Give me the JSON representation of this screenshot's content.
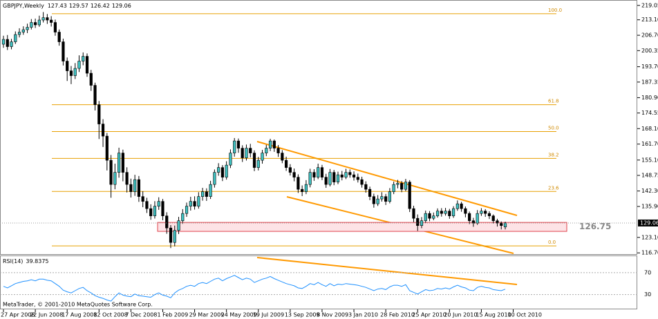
{
  "chart_data": {
    "type": "candlestick",
    "symbol": "GBPJPY,Weekly",
    "candles": [
      [
        203,
        206.5,
        201.5,
        205
      ],
      [
        205,
        206.8,
        200.6,
        202
      ],
      [
        202,
        205.2,
        200.9,
        204
      ],
      [
        204,
        208.3,
        203.1,
        207
      ],
      [
        207,
        209.6,
        205.8,
        208
      ],
      [
        208,
        210.4,
        206.9,
        209
      ],
      [
        209,
        211.5,
        207.6,
        210
      ],
      [
        210,
        213.4,
        209.1,
        212
      ],
      [
        212,
        213.6,
        209.7,
        211
      ],
      [
        211,
        214.8,
        210.2,
        213
      ],
      [
        213,
        216.3,
        212.0,
        214
      ],
      [
        214,
        215.5,
        211.4,
        213
      ],
      [
        213,
        214.6,
        210.3,
        212
      ],
      [
        212,
        213.2,
        206.5,
        208
      ],
      [
        208,
        209.1,
        202.4,
        204
      ],
      [
        204,
        205.3,
        194.2,
        196
      ],
      [
        196,
        197.5,
        187.8,
        192
      ],
      [
        192,
        194.0,
        186.5,
        190
      ],
      [
        190,
        195.2,
        188.6,
        193
      ],
      [
        193,
        198.4,
        191.5,
        196
      ],
      [
        196,
        199.6,
        194.3,
        198
      ],
      [
        198,
        199.2,
        189.5,
        191
      ],
      [
        191,
        192.4,
        183.7,
        186
      ],
      [
        186,
        187.1,
        175.6,
        178
      ],
      [
        178,
        179.5,
        163.8,
        170
      ],
      [
        170,
        172.0,
        160.5,
        165
      ],
      [
        165,
        166.3,
        150.8,
        155
      ],
      [
        155,
        157.2,
        139.5,
        145
      ],
      [
        145,
        153.6,
        143.0,
        150
      ],
      [
        150,
        160.2,
        147.8,
        158
      ],
      [
        158,
        159.4,
        146.3,
        150
      ],
      [
        150,
        152.1,
        141.7,
        145
      ],
      [
        145,
        147.4,
        139.6,
        142
      ],
      [
        142,
        149.0,
        140.3,
        147
      ],
      [
        147,
        148.5,
        137.8,
        140
      ],
      [
        140,
        142.2,
        135.6,
        138
      ],
      [
        138,
        139.5,
        133.2,
        135
      ],
      [
        135,
        136.8,
        130.4,
        132
      ],
      [
        132,
        138.1,
        130.9,
        136
      ],
      [
        136,
        139.7,
        134.5,
        138
      ],
      [
        138,
        139.0,
        130.2,
        132
      ],
      [
        132,
        133.5,
        124.6,
        127
      ],
      [
        127,
        128.2,
        118.7,
        121
      ],
      [
        121,
        128.0,
        119.4,
        126
      ],
      [
        126,
        131.6,
        124.5,
        130
      ],
      [
        130,
        134.8,
        128.7,
        133
      ],
      [
        133,
        137.5,
        131.6,
        136
      ],
      [
        136,
        139.9,
        134.2,
        138
      ],
      [
        138,
        140.1,
        134.6,
        136
      ],
      [
        136,
        141.8,
        135.0,
        140
      ],
      [
        140,
        143.6,
        138.3,
        142
      ],
      [
        142,
        143.4,
        138.2,
        140
      ],
      [
        140,
        146.5,
        139.0,
        145
      ],
      [
        145,
        151.2,
        143.7,
        150
      ],
      [
        150,
        153.8,
        148.6,
        152
      ],
      [
        152,
        153.0,
        146.4,
        148
      ],
      [
        148,
        154.6,
        147.0,
        153
      ],
      [
        153,
        159.5,
        151.8,
        158
      ],
      [
        158,
        164.2,
        156.5,
        163
      ],
      [
        163,
        164.0,
        158.1,
        160
      ],
      [
        160,
        161.2,
        154.3,
        156
      ],
      [
        156,
        161.5,
        154.9,
        160
      ],
      [
        160,
        161.8,
        156.2,
        158
      ],
      [
        158,
        159.1,
        150.5,
        152
      ],
      [
        152,
        156.4,
        150.8,
        155
      ],
      [
        155,
        159.3,
        153.6,
        158
      ],
      [
        158,
        161.4,
        156.7,
        160
      ],
      [
        160,
        163.9,
        158.8,
        163
      ],
      [
        163,
        163.6,
        158.5,
        160
      ],
      [
        160,
        161.3,
        156.4,
        158
      ],
      [
        158,
        159.2,
        153.8,
        155
      ],
      [
        155,
        156.5,
        150.6,
        152
      ],
      [
        152,
        153.4,
        148.7,
        150
      ],
      [
        150,
        151.6,
        146.3,
        148
      ],
      [
        148,
        149.2,
        141.5,
        143
      ],
      [
        143,
        144.6,
        140.2,
        142
      ],
      [
        142,
        146.8,
        141.0,
        145
      ],
      [
        145,
        151.5,
        143.8,
        150
      ],
      [
        150,
        151.3,
        146.5,
        148
      ],
      [
        148,
        153.6,
        147.2,
        152
      ],
      [
        152,
        153.1,
        146.8,
        148
      ],
      [
        148,
        149.4,
        143.6,
        145
      ],
      [
        145,
        151.4,
        144.2,
        150
      ],
      [
        150,
        151.0,
        144.7,
        146
      ],
      [
        146,
        150.3,
        145.1,
        149
      ],
      [
        149,
        150.6,
        146.7,
        148
      ],
      [
        148,
        151.5,
        147.2,
        150
      ],
      [
        150,
        151.2,
        147.8,
        149
      ],
      [
        149,
        150.4,
        146.6,
        148
      ],
      [
        148,
        149.5,
        145.8,
        147
      ],
      [
        147,
        148.2,
        143.7,
        145
      ],
      [
        145,
        146.3,
        141.6,
        143
      ],
      [
        143,
        144.1,
        138.5,
        140
      ],
      [
        140,
        141.2,
        135.4,
        137
      ],
      [
        137,
        140.6,
        136.1,
        139
      ],
      [
        139,
        141.8,
        137.9,
        140
      ],
      [
        140,
        141.1,
        136.5,
        138
      ],
      [
        138,
        143.5,
        137.2,
        142
      ],
      [
        142,
        146.2,
        141.0,
        145
      ],
      [
        145,
        146.9,
        143.4,
        145.5
      ],
      [
        145.5,
        146.4,
        141.8,
        143
      ],
      [
        143,
        147.3,
        142.2,
        146
      ],
      [
        146,
        146.8,
        133.6,
        135
      ],
      [
        135,
        136.2,
        129.4,
        131
      ],
      [
        131,
        132.6,
        125.8,
        128
      ],
      [
        128,
        131.5,
        126.9,
        130
      ],
      [
        130,
        134.2,
        129.1,
        133
      ],
      [
        133,
        134.0,
        129.8,
        131
      ],
      [
        131,
        133.4,
        130.2,
        132
      ],
      [
        132,
        135.1,
        131.3,
        134
      ],
      [
        134,
        135.2,
        131.7,
        133
      ],
      [
        133,
        135.3,
        132.1,
        134
      ],
      [
        134,
        134.9,
        130.8,
        132
      ],
      [
        132,
        136.0,
        131.2,
        135
      ],
      [
        135,
        138.4,
        134.1,
        137
      ],
      [
        137,
        137.8,
        133.7,
        135
      ],
      [
        135,
        135.9,
        131.4,
        133
      ],
      [
        133,
        133.8,
        128.6,
        130
      ],
      [
        130,
        131.2,
        127.5,
        129
      ],
      [
        129,
        134.4,
        128.3,
        133
      ],
      [
        133,
        135.2,
        132.0,
        134
      ],
      [
        134,
        134.8,
        131.6,
        133
      ],
      [
        133,
        133.9,
        130.7,
        132
      ],
      [
        132,
        132.6,
        128.9,
        130
      ],
      [
        130,
        130.8,
        127.6,
        129
      ],
      [
        129,
        129.7,
        126.4,
        128
      ],
      [
        127.43,
        129.57,
        126.42,
        129.06
      ]
    ],
    "bull_color": "#3fc1c1",
    "bear_color": "#000000",
    "ylim": [
      116.2,
      221.0
    ],
    "yticks": [
      219.05,
      {
        "value": 213.1,
        "label": "213.10"
      },
      {
        "value": 206.7,
        "label": "206.70"
      },
      200.35,
      {
        "value": 193.7,
        "label": "193.70"
      },
      187.35,
      {
        "value": 180.9,
        "label": "180.90"
      },
      174.55,
      {
        "value": 168.1,
        "label": "168.10"
      },
      {
        "value": 161.7,
        "label": "161.70"
      },
      {
        "value": 155.1,
        "label": "155.10"
      },
      148.75,
      {
        "value": 142.3,
        "label": "142.30"
      },
      {
        "value": 135.9,
        "label": "135.90"
      },
      {
        "value": 123.1,
        "label": "123.10"
      },
      {
        "value": 116.7,
        "label": "116.70"
      }
    ],
    "x_labels": [
      "27 Apr 2008",
      "22 Jun 2008",
      "17 Aug 2008",
      "12 Oct 2008",
      "7 Dec 2008",
      "1 Feb 2009",
      "29 Mar 2009",
      "24 May 2009",
      "19 Jul 2009",
      "13 Sep 2009",
      "8 Nov 2009",
      "3 Jan 2010",
      "28 Feb 2010",
      "25 Apr 2010",
      "20 Jun 2010",
      "15 Aug 2010",
      "10 Oct 2010"
    ],
    "fib_levels": [
      {
        "label": "100.0",
        "price": 215.6
      },
      {
        "label": "61.8",
        "price": 178.0
      },
      {
        "label": "50.0",
        "price": 166.9
      },
      {
        "label": "38.2",
        "price": 155.8
      },
      {
        "label": "23.6",
        "price": 142.1
      },
      {
        "label": "0.0",
        "price": 119.6
      }
    ],
    "zone": {
      "top": 129.3,
      "bottom": 125.6,
      "label": "126.75"
    },
    "rsi": {
      "name": "RSI(14)",
      "color": "#1e90ff",
      "ylim": [
        3,
        100
      ],
      "yticks": [
        70,
        30
      ],
      "values": [
        45,
        42,
        46,
        50,
        52,
        54,
        55,
        57,
        55,
        58,
        58,
        56,
        55,
        50,
        45,
        38,
        35,
        33,
        37,
        41,
        43,
        37,
        33,
        28,
        25,
        23,
        20,
        18,
        26,
        33,
        29,
        27,
        26,
        31,
        28,
        27,
        26,
        25,
        30,
        33,
        29,
        27,
        24,
        33,
        38,
        41,
        45,
        47,
        45,
        50,
        52,
        50,
        54,
        58,
        60,
        55,
        59,
        62,
        65,
        61,
        57,
        60,
        58,
        52,
        55,
        58,
        60,
        63,
        59,
        56,
        53,
        50,
        48,
        46,
        42,
        41,
        45,
        50,
        48,
        52,
        48,
        45,
        50,
        46,
        49,
        48,
        50,
        49,
        48,
        47,
        45,
        43,
        40,
        37,
        40,
        41,
        39,
        44,
        47,
        47,
        45,
        48,
        37,
        34,
        31,
        35,
        39,
        37,
        38,
        41,
        40,
        42,
        40,
        44,
        47,
        44,
        42,
        38,
        37,
        43,
        45,
        43,
        42,
        39,
        38,
        37,
        39.8375
      ]
    },
    "footer": "MetaTrader, © 2001-2010 MetaQuotes Software Corp."
  }
}
